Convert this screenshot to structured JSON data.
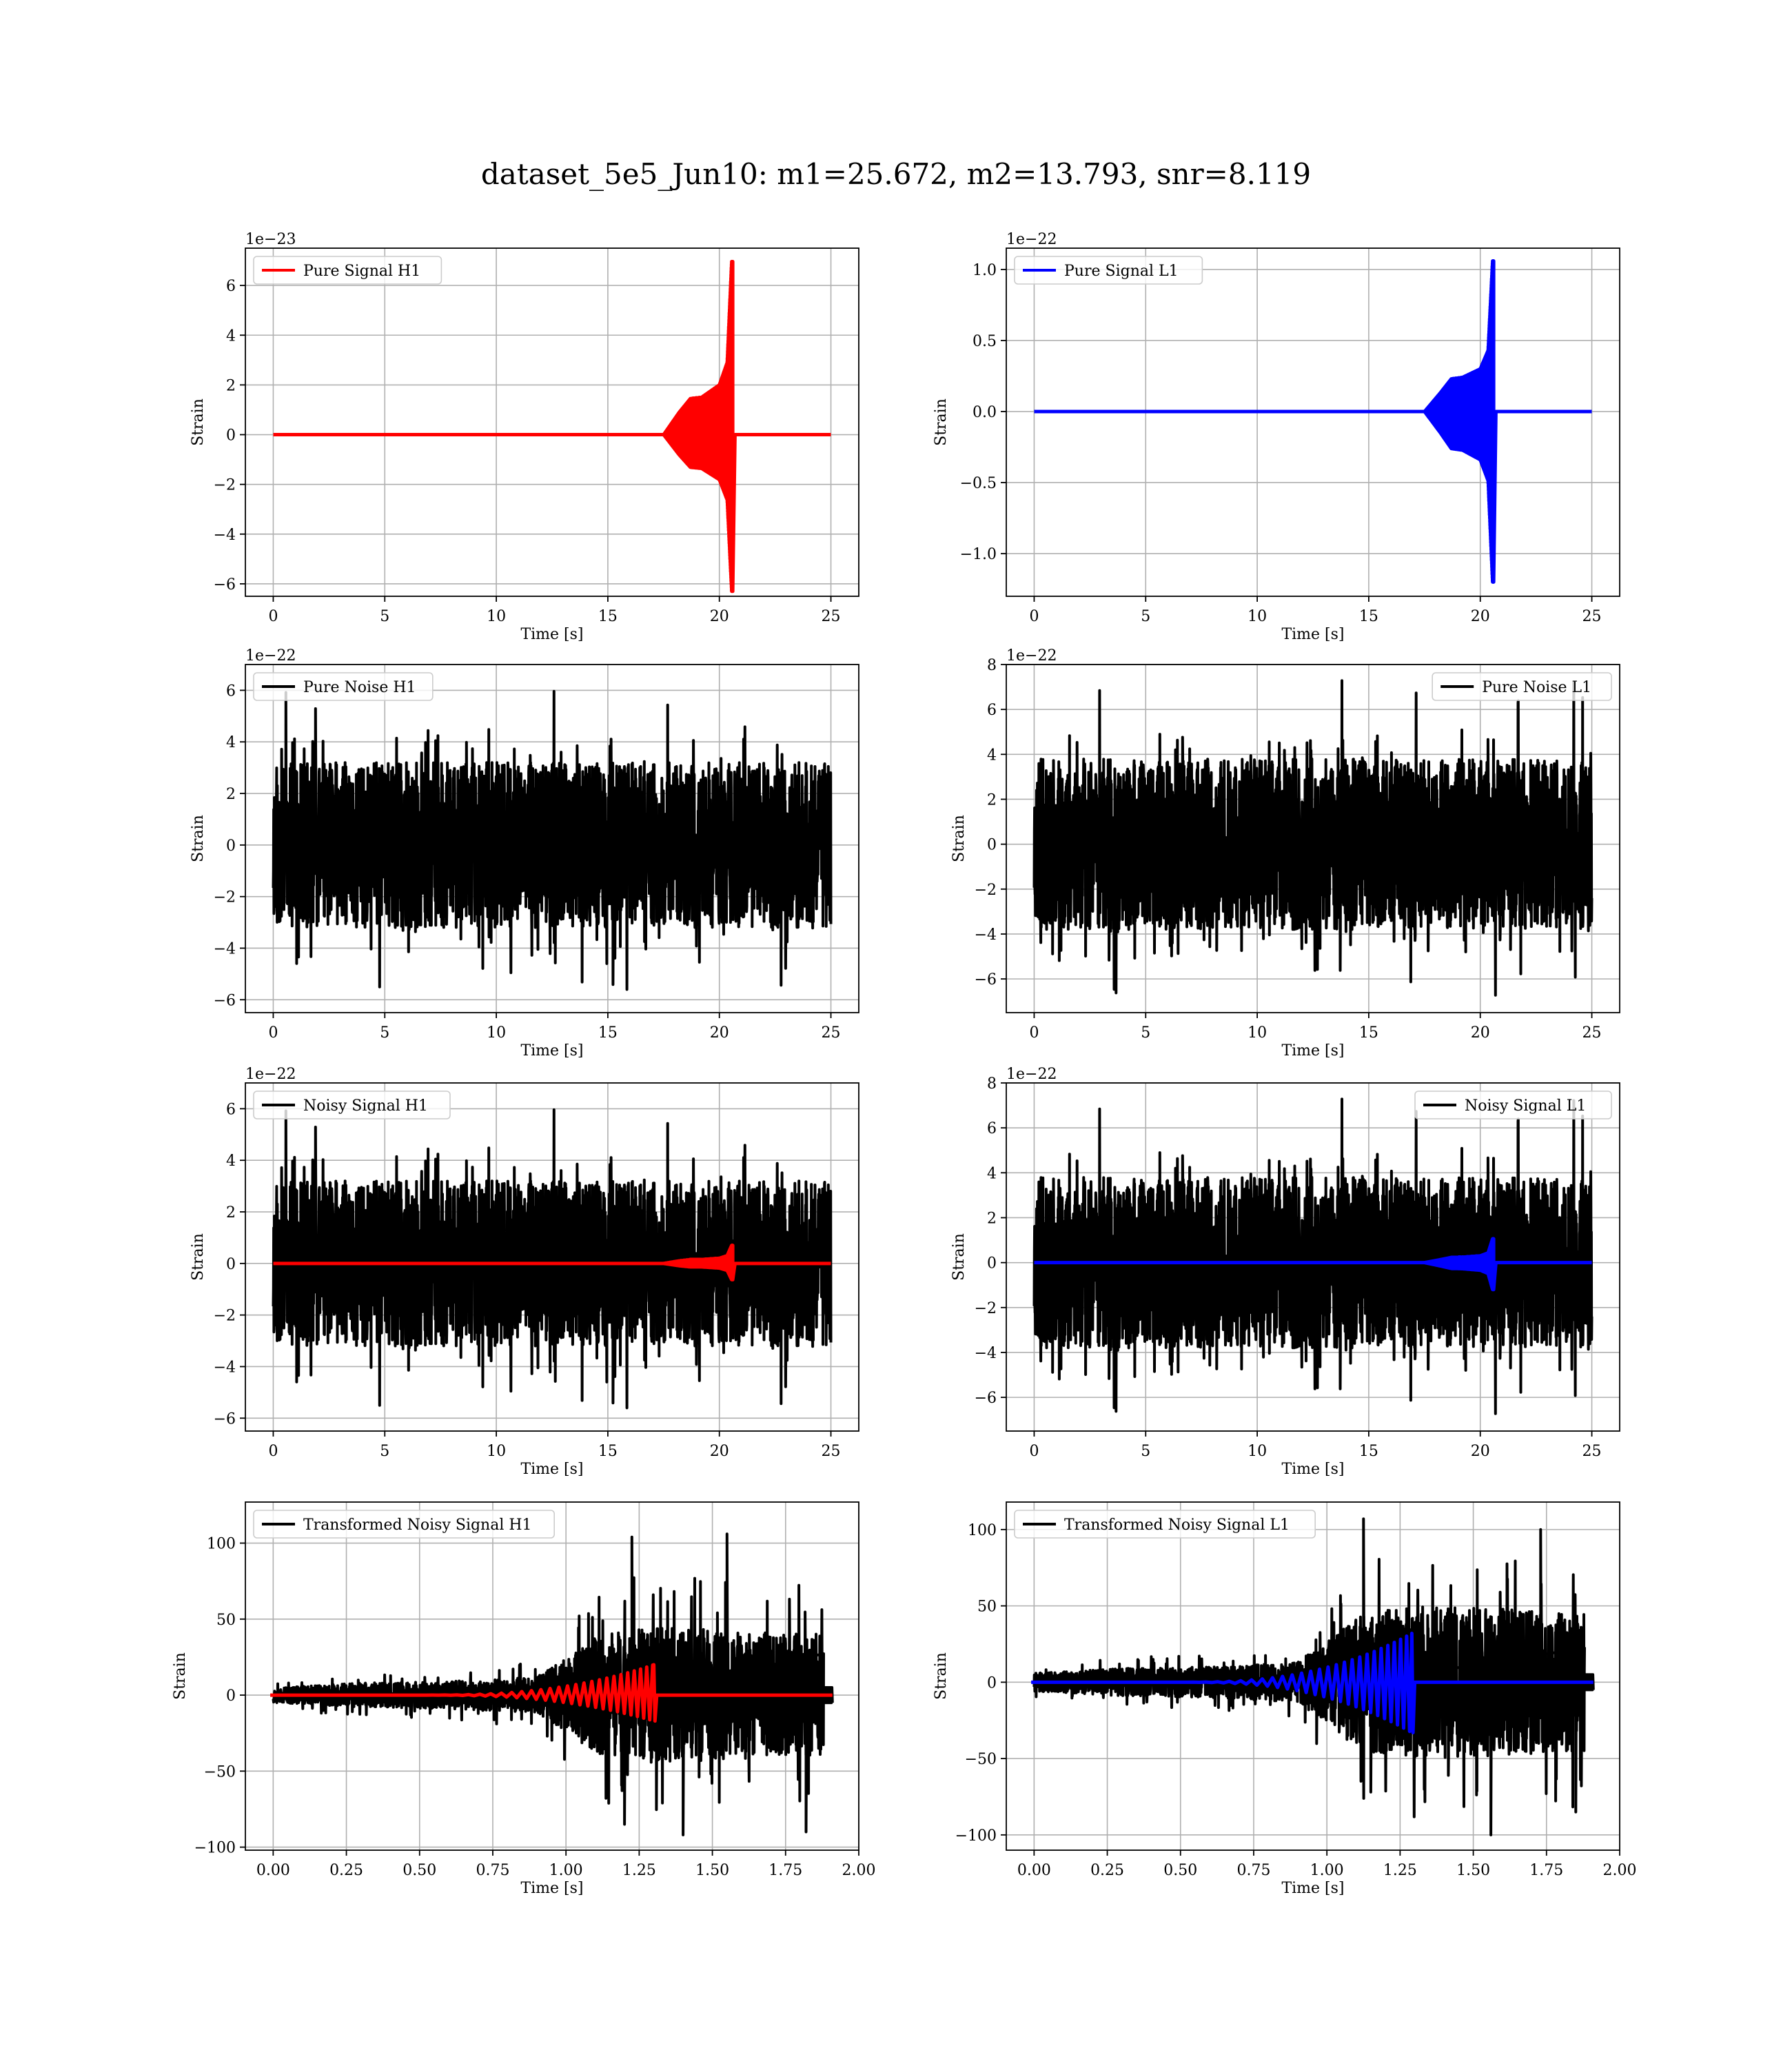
{
  "figure_title": "dataset_5e5_Jun10: m1=25.672, m2=13.793, snr=8.119",
  "colors": {
    "h1_signal": "#ff0000",
    "l1_signal": "#0000ff",
    "noise": "#000000",
    "grid": "#b0b0b0"
  },
  "chart_data": [
    {
      "type": "line",
      "legend": [
        "Pure Signal H1"
      ],
      "legend_loc": "upper-left",
      "xlabel": "Time [s]",
      "ylabel": "Strain",
      "offset_text": "1e−23",
      "xlim": [
        -1.25,
        26.25
      ],
      "ylim": [
        -6.5,
        7.5
      ],
      "xticks": [
        0,
        5,
        10,
        15,
        20,
        25
      ],
      "xtick_labels": [
        "0",
        "5",
        "10",
        "15",
        "20",
        "25"
      ],
      "yticks": [
        -6,
        -4,
        -2,
        0,
        2,
        4,
        6
      ],
      "ytick_labels": [
        "−6",
        "−4",
        "−2",
        "0",
        "2",
        "4",
        "6"
      ],
      "grid": true,
      "series": [
        {
          "kind": "chirp",
          "color": "#ff0000",
          "lw": 5,
          "t_start": 13.0,
          "t_merge": 20.6,
          "t_end": 25.0,
          "env_plateau": [
            [
              17.5,
              0.0
            ],
            [
              18.2,
              0.9
            ],
            [
              18.7,
              1.45
            ],
            [
              19.2,
              1.5
            ],
            [
              20.0,
              2.0
            ],
            [
              20.35,
              2.9
            ],
            [
              20.55,
              6.96
            ]
          ],
          "env_neg": -6.3,
          "ringdown_to": 20.7
        }
      ]
    },
    {
      "type": "line",
      "legend": [
        "Pure Signal L1"
      ],
      "legend_loc": "upper-left",
      "xlabel": "Time [s]",
      "ylabel": "Strain",
      "offset_text": "1e−22",
      "xlim": [
        -1.25,
        26.25
      ],
      "ylim": [
        -1.3,
        1.15
      ],
      "xticks": [
        0,
        5,
        10,
        15,
        20,
        25
      ],
      "xtick_labels": [
        "0",
        "5",
        "10",
        "15",
        "20",
        "25"
      ],
      "yticks": [
        -1.0,
        -0.5,
        0.0,
        0.5,
        1.0
      ],
      "ytick_labels": [
        "−1.0",
        "−0.5",
        "0.0",
        "0.5",
        "1.0"
      ],
      "grid": true,
      "series": [
        {
          "kind": "chirp",
          "color": "#0000ff",
          "lw": 5,
          "t_start": 13.0,
          "t_merge": 20.6,
          "t_end": 25.0,
          "env_plateau": [
            [
              17.5,
              0.0
            ],
            [
              18.2,
              0.13
            ],
            [
              18.7,
              0.23
            ],
            [
              19.2,
              0.24
            ],
            [
              20.0,
              0.3
            ],
            [
              20.35,
              0.43
            ],
            [
              20.55,
              1.06
            ]
          ],
          "env_neg": -1.2,
          "ringdown_to": 20.7
        }
      ]
    },
    {
      "type": "line",
      "legend": [
        "Pure Noise H1"
      ],
      "legend_loc": "upper-left",
      "xlabel": "Time [s]",
      "ylabel": "Strain",
      "offset_text": "1e−22",
      "xlim": [
        -1.25,
        26.25
      ],
      "ylim": [
        -6.5,
        7.0
      ],
      "xticks": [
        0,
        5,
        10,
        15,
        20,
        25
      ],
      "xtick_labels": [
        "0",
        "5",
        "10",
        "15",
        "20",
        "25"
      ],
      "yticks": [
        -6,
        -4,
        -2,
        0,
        2,
        4,
        6
      ],
      "ytick_labels": [
        "−6",
        "−4",
        "−2",
        "0",
        "2",
        "4",
        "6"
      ],
      "grid": true,
      "series": [
        {
          "kind": "noise",
          "color": "#000000",
          "lw": 4,
          "t0": 0,
          "t1": 25,
          "core": 3.2,
          "peak_pos": 6.4,
          "peak_neg": -5.8,
          "seed": 11
        }
      ]
    },
    {
      "type": "line",
      "legend": [
        "Pure Noise L1"
      ],
      "legend_loc": "upper-right",
      "xlabel": "Time [s]",
      "ylabel": "Strain",
      "offset_text": "1e−22",
      "xlim": [
        -1.25,
        26.25
      ],
      "ylim": [
        -7.5,
        8.0
      ],
      "xticks": [
        0,
        5,
        10,
        15,
        20,
        25
      ],
      "xtick_labels": [
        "0",
        "5",
        "10",
        "15",
        "20",
        "25"
      ],
      "yticks": [
        -6,
        -4,
        -2,
        0,
        2,
        4,
        6,
        8
      ],
      "ytick_labels": [
        "−6",
        "−4",
        "−2",
        "0",
        "2",
        "4",
        "6",
        "8"
      ],
      "grid": true,
      "series": [
        {
          "kind": "noise",
          "color": "#000000",
          "lw": 4,
          "t0": 0,
          "t1": 25,
          "core": 3.8,
          "peak_pos": 7.4,
          "peak_neg": -6.8,
          "seed": 23
        }
      ]
    },
    {
      "type": "line",
      "legend": [
        "Noisy Signal H1"
      ],
      "legend_loc": "upper-left",
      "xlabel": "Time [s]",
      "ylabel": "Strain",
      "offset_text": "1e−22",
      "xlim": [
        -1.25,
        26.25
      ],
      "ylim": [
        -6.5,
        7.0
      ],
      "xticks": [
        0,
        5,
        10,
        15,
        20,
        25
      ],
      "xtick_labels": [
        "0",
        "5",
        "10",
        "15",
        "20",
        "25"
      ],
      "yticks": [
        -6,
        -4,
        -2,
        0,
        2,
        4,
        6
      ],
      "ytick_labels": [
        "−6",
        "−4",
        "−2",
        "0",
        "2",
        "4",
        "6"
      ],
      "grid": true,
      "series": [
        {
          "kind": "noise",
          "color": "#000000",
          "lw": 4,
          "t0": 0,
          "t1": 25,
          "core": 3.2,
          "peak_pos": 6.4,
          "peak_neg": -5.8,
          "seed": 11
        },
        {
          "kind": "chirp",
          "color": "#ff0000",
          "lw": 5,
          "t_start": 0.0,
          "t_merge": 20.6,
          "t_end": 25.0,
          "env_plateau": [
            [
              17.5,
              0.0
            ],
            [
              18.2,
              0.1
            ],
            [
              18.7,
              0.15
            ],
            [
              19.2,
              0.15
            ],
            [
              20.0,
              0.2
            ],
            [
              20.35,
              0.3
            ],
            [
              20.55,
              0.7
            ]
          ],
          "env_neg": -0.63,
          "ringdown_to": 20.7
        }
      ]
    },
    {
      "type": "line",
      "legend": [
        "Noisy Signal L1"
      ],
      "legend_loc": "upper-right",
      "xlabel": "Time [s]",
      "ylabel": "Strain",
      "offset_text": "1e−22",
      "xlim": [
        -1.25,
        26.25
      ],
      "ylim": [
        -7.5,
        8.0
      ],
      "xticks": [
        0,
        5,
        10,
        15,
        20,
        25
      ],
      "xtick_labels": [
        "0",
        "5",
        "10",
        "15",
        "20",
        "25"
      ],
      "yticks": [
        -6,
        -4,
        -2,
        0,
        2,
        4,
        6,
        8
      ],
      "ytick_labels": [
        "−6",
        "−4",
        "−2",
        "0",
        "2",
        "4",
        "6",
        "8"
      ],
      "grid": true,
      "series": [
        {
          "kind": "noise",
          "color": "#000000",
          "lw": 4,
          "t0": 0,
          "t1": 25,
          "core": 3.8,
          "peak_pos": 7.4,
          "peak_neg": -6.8,
          "seed": 23
        },
        {
          "kind": "chirp",
          "color": "#0000ff",
          "lw": 5,
          "t_start": 0.0,
          "t_merge": 20.6,
          "t_end": 25.0,
          "env_plateau": [
            [
              17.5,
              0.0
            ],
            [
              18.2,
              0.13
            ],
            [
              18.7,
              0.23
            ],
            [
              19.2,
              0.24
            ],
            [
              20.0,
              0.3
            ],
            [
              20.35,
              0.43
            ],
            [
              20.55,
              1.06
            ]
          ],
          "env_neg": -1.2,
          "ringdown_to": 20.7
        }
      ]
    },
    {
      "type": "line",
      "legend": [
        "Transformed Noisy Signal H1"
      ],
      "legend_loc": "upper-left",
      "xlabel": "Time [s]",
      "ylabel": "Strain",
      "offset_text": "",
      "xlim": [
        -0.095,
        2.0
      ],
      "ylim": [
        -102,
        127
      ],
      "xticks": [
        0.0,
        0.25,
        0.5,
        0.75,
        1.0,
        1.25,
        1.5,
        1.75,
        2.0
      ],
      "xtick_labels": [
        "0.00",
        "0.25",
        "0.50",
        "0.75",
        "1.00",
        "1.25",
        "1.50",
        "1.75",
        "2.00"
      ],
      "yticks": [
        -100,
        -50,
        0,
        50,
        100
      ],
      "ytick_labels": [
        "−100",
        "−50",
        "0",
        "50",
        "100"
      ],
      "grid": true,
      "series": [
        {
          "kind": "tnoise",
          "color": "#000000",
          "lw": 4,
          "t0": 0,
          "t1": 1.88,
          "seed": 37,
          "segments": [
            [
              0.0,
              5
            ],
            [
              0.3,
              8
            ],
            [
              0.6,
              9
            ],
            [
              0.9,
              12
            ],
            [
              1.12,
              40
            ],
            [
              1.3,
              45
            ],
            [
              1.6,
              42
            ],
            [
              1.88,
              40
            ]
          ],
          "peaks": [
            [
              1.225,
              104
            ],
            [
              1.4,
              -92
            ],
            [
              1.55,
              106
            ],
            [
              1.82,
              -90
            ],
            [
              1.2,
              -85
            ]
          ],
          "tail": [
            1.88,
            1.91,
            5
          ]
        },
        {
          "kind": "tchirp",
          "color": "#ff0000",
          "lw": 5,
          "t_start": 0.5,
          "t_merge": 1.3,
          "t_end": 1.91,
          "amp_end": 20,
          "amp_neg": -17
        }
      ]
    },
    {
      "type": "line",
      "legend": [
        "Transformed Noisy Signal L1"
      ],
      "legend_loc": "upper-left",
      "xlabel": "Time [s]",
      "ylabel": "Strain",
      "offset_text": "",
      "xlim": [
        -0.095,
        2.0
      ],
      "ylim": [
        -110,
        118
      ],
      "xticks": [
        0.0,
        0.25,
        0.5,
        0.75,
        1.0,
        1.25,
        1.5,
        1.75,
        2.0
      ],
      "xtick_labels": [
        "0.00",
        "0.25",
        "0.50",
        "0.75",
        "1.00",
        "1.25",
        "1.50",
        "1.75",
        "2.00"
      ],
      "yticks": [
        -100,
        -50,
        0,
        50,
        100
      ],
      "ytick_labels": [
        "−100",
        "−50",
        "0",
        "50",
        "100"
      ],
      "grid": true,
      "series": [
        {
          "kind": "tnoise",
          "color": "#000000",
          "lw": 4,
          "t0": 0,
          "t1": 1.88,
          "seed": 41,
          "segments": [
            [
              0.0,
              6
            ],
            [
              0.3,
              9
            ],
            [
              0.6,
              10
            ],
            [
              0.9,
              13
            ],
            [
              1.12,
              45
            ],
            [
              1.3,
              50
            ],
            [
              1.6,
              48
            ],
            [
              1.88,
              45
            ]
          ],
          "peaks": [
            [
              1.125,
              107
            ],
            [
              1.56,
              -100
            ],
            [
              1.73,
              100
            ],
            [
              1.85,
              -85
            ],
            [
              1.15,
              -72
            ]
          ],
          "tail": [
            1.88,
            1.91,
            5
          ]
        },
        {
          "kind": "tchirp",
          "color": "#0000ff",
          "lw": 5,
          "t_start": 0.5,
          "t_merge": 1.29,
          "t_end": 1.91,
          "amp_end": 32,
          "amp_neg": -33
        }
      ]
    }
  ]
}
